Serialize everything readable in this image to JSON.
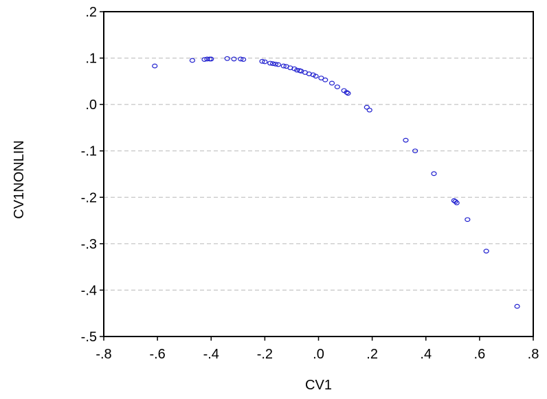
{
  "chart_data": {
    "type": "scatter",
    "title": "",
    "xlabel": "CV1",
    "ylabel": "CV1NONLIN",
    "xlim": [
      -0.8,
      0.8
    ],
    "ylim": [
      -0.5,
      0.2
    ],
    "xticks": [
      -0.8,
      -0.6,
      -0.4,
      -0.2,
      0.0,
      0.2,
      0.4,
      0.6,
      0.8
    ],
    "xtick_labels": [
      "-.8",
      "-.6",
      "-.4",
      "-.2",
      ".0",
      ".2",
      ".4",
      ".6",
      ".8"
    ],
    "yticks": [
      0.2,
      0.1,
      0.0,
      -0.1,
      -0.2,
      -0.3,
      -0.4,
      -0.5
    ],
    "ytick_labels": [
      ".2",
      ".1",
      ".0",
      "-.1",
      "-.2",
      "-.3",
      "-.4",
      "-.5"
    ],
    "grid": "horizontal dashed",
    "marker": "open circle",
    "colors": {
      "marker": "#1f1fcf",
      "grid": "#b8b8b8",
      "axis": "#000000"
    },
    "x": [
      -0.61,
      -0.47,
      -0.425,
      -0.415,
      -0.405,
      -0.4,
      -0.34,
      -0.315,
      -0.29,
      -0.28,
      -0.21,
      -0.2,
      -0.18,
      -0.17,
      -0.16,
      -0.15,
      -0.13,
      -0.12,
      -0.105,
      -0.09,
      -0.08,
      -0.07,
      -0.065,
      -0.05,
      -0.035,
      -0.02,
      -0.01,
      0.01,
      0.025,
      0.05,
      0.07,
      0.095,
      0.105,
      0.11,
      0.18,
      0.19,
      0.325,
      0.36,
      0.43,
      0.505,
      0.51,
      0.515,
      0.555,
      0.625,
      0.74
    ],
    "y": [
      0.083,
      0.095,
      0.097,
      0.098,
      0.098,
      0.098,
      0.099,
      0.098,
      0.098,
      0.097,
      0.093,
      0.092,
      0.089,
      0.088,
      0.087,
      0.086,
      0.083,
      0.082,
      0.079,
      0.077,
      0.074,
      0.073,
      0.072,
      0.069,
      0.066,
      0.064,
      0.061,
      0.057,
      0.053,
      0.046,
      0.038,
      0.03,
      0.026,
      0.024,
      -0.006,
      -0.012,
      -0.077,
      -0.1,
      -0.149,
      -0.207,
      -0.209,
      -0.212,
      -0.248,
      -0.316,
      -0.435
    ]
  }
}
